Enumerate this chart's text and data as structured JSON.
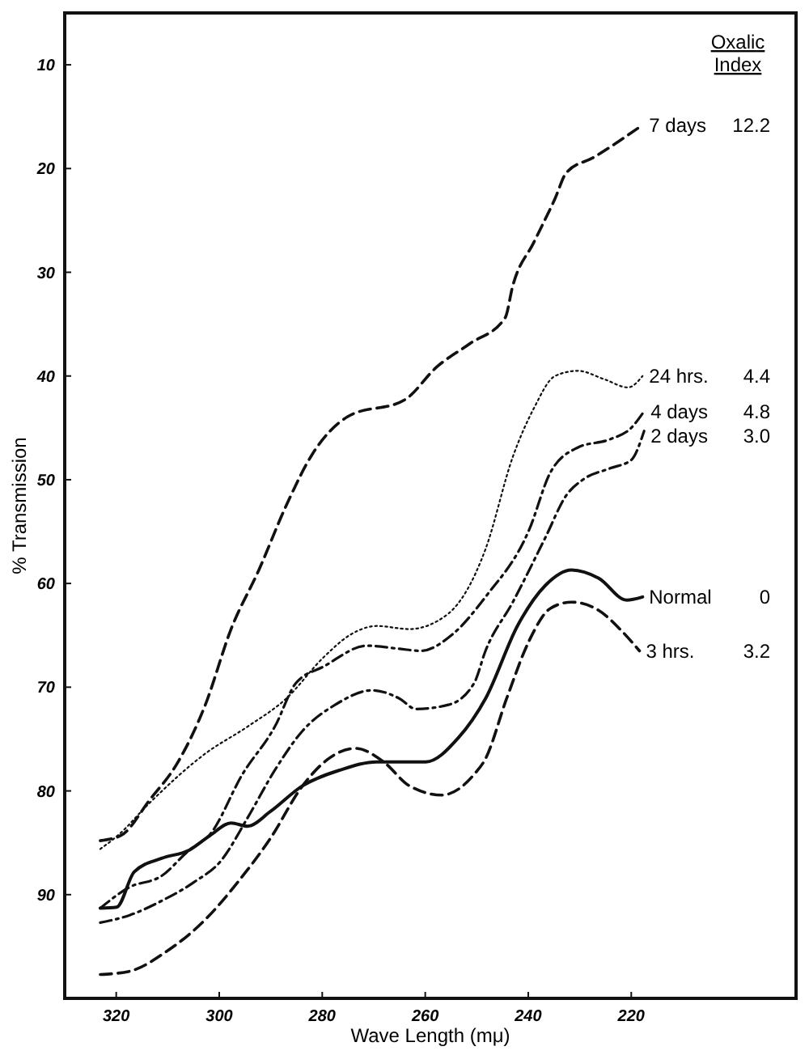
{
  "chart_data": {
    "type": "line",
    "xlabel": "Wave Length (mμ)",
    "ylabel": "% Transmission",
    "legend_title": "Oxalic Index",
    "xlim": [
      330,
      188
    ],
    "xticks": [
      320,
      300,
      280,
      260,
      240,
      220
    ],
    "ylim": [
      100,
      5
    ],
    "yticks": [
      10,
      20,
      30,
      40,
      50,
      60,
      70,
      80,
      90
    ],
    "annotations": [
      "12.2",
      "4.4",
      "4.8",
      "3.0",
      "0",
      "3.2"
    ],
    "series": [
      {
        "name": "7 days",
        "color": "#111111",
        "line_style": "dashed",
        "x": [
          323.1,
          319.1,
          313.4,
          308.1,
          302.7,
          297.7,
          292.3,
          287.0,
          282.0,
          275.0,
          264.0,
          257.7,
          251.4,
          244.5,
          243.0,
          238.9,
          234.8,
          232.6,
          227.2,
          222.2,
          217.8
        ],
        "values": [
          84.8,
          84.3,
          80.8,
          77.3,
          71.7,
          64.4,
          58.7,
          52.5,
          47.6,
          43.9,
          42.3,
          39.1,
          36.9,
          34.4,
          31.3,
          27.1,
          22.9,
          20.4,
          18.9,
          17.3,
          15.8
        ]
      },
      {
        "name": "24 hrs.",
        "color": "#111111",
        "line_style": "dotted",
        "x": [
          323.1,
          319.7,
          313.4,
          302.7,
          294.5,
          287.0,
          279.7,
          274.4,
          269.4,
          263.1,
          255.5,
          248.3,
          243.0,
          238.9,
          234.8,
          230.4,
          225.3,
          220.6,
          217.8
        ],
        "values": [
          85.6,
          84.3,
          81.1,
          76.4,
          73.8,
          71.1,
          67.1,
          64.9,
          64.1,
          64.4,
          62.9,
          56.7,
          47.8,
          43.1,
          40.0,
          39.5,
          40.3,
          41.1,
          40.0
        ]
      },
      {
        "name": "4 days",
        "color": "#111111",
        "line_style": "dashdot",
        "x": [
          323.1,
          317.5,
          311.2,
          305.8,
          301.8,
          295.5,
          289.2,
          285.1,
          279.7,
          271.3,
          265.0,
          260.9,
          254.7,
          248.3,
          239.8,
          235.7,
          230.4,
          224.1,
          220.0,
          217.5
        ],
        "values": [
          91.3,
          89.3,
          88.2,
          85.7,
          84.2,
          78.4,
          73.8,
          69.6,
          68.0,
          66.0,
          66.3,
          66.5,
          64.9,
          61.3,
          54.8,
          49.3,
          46.9,
          46.1,
          45.0,
          43.4
        ]
      },
      {
        "name": "2 days",
        "color": "#111111",
        "line_style": "dashdot",
        "x": [
          323.1,
          317.5,
          311.2,
          304.9,
          299.6,
          294.5,
          289.2,
          283.8,
          277.5,
          270.3,
          265.0,
          261.8,
          255.5,
          250.5,
          248.3,
          243.0,
          236.7,
          232.6,
          229.4,
          224.1,
          220.0,
          217.5
        ],
        "values": [
          92.7,
          92.0,
          90.6,
          88.8,
          86.7,
          82.6,
          78.0,
          74.2,
          71.7,
          70.3,
          71.1,
          72.1,
          71.7,
          69.6,
          66.5,
          61.8,
          55.6,
          51.5,
          50.0,
          48.9,
          48.1,
          45.3
        ]
      },
      {
        "name": "Normal",
        "color": "#111111",
        "line_style": "solid",
        "x": [
          323.1,
          319.9,
          316.5,
          311.2,
          305.8,
          301.8,
          297.7,
          294.5,
          290.1,
          283.8,
          276.6,
          269.4,
          259.9,
          253.6,
          248.3,
          242.0,
          236.7,
          231.6,
          226.3,
          220.9,
          217.8
        ],
        "values": [
          91.3,
          91.2,
          87.8,
          86.5,
          85.7,
          84.3,
          83.1,
          83.4,
          82.0,
          79.5,
          78.0,
          77.2,
          77.2,
          74.9,
          71.1,
          64.0,
          60.2,
          58.7,
          59.5,
          61.6,
          61.3
        ]
      },
      {
        "name": "3 hrs.",
        "color": "#111111",
        "line_style": "dashed",
        "x": [
          323.1,
          317.5,
          310.3,
          302.7,
          296.4,
          290.1,
          283.8,
          278.8,
          273.5,
          268.1,
          263.1,
          256.8,
          250.5,
          248.3,
          244.2,
          239.8,
          235.7,
          231.6,
          226.3,
          222.2,
          218.4
        ],
        "values": [
          97.7,
          97.4,
          95.5,
          92.4,
          88.8,
          84.6,
          79.5,
          76.9,
          75.9,
          77.2,
          79.5,
          80.4,
          78.4,
          76.9,
          71.1,
          65.5,
          62.4,
          61.8,
          62.6,
          64.4,
          66.5
        ]
      }
    ]
  }
}
